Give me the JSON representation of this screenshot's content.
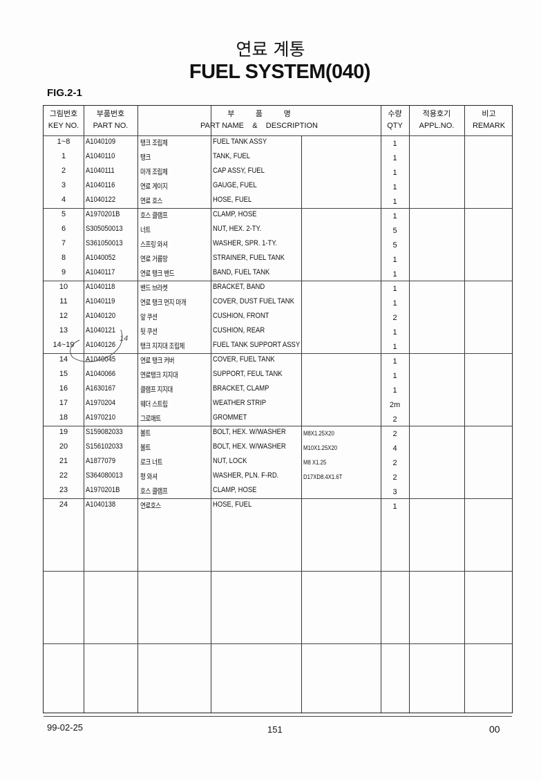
{
  "title_ko": "연료 계통",
  "title_en": "FUEL SYSTEM(040)",
  "figure": "FIG.2-1",
  "headers": {
    "key_ko": "그림번호",
    "key_en": "KEY NO.",
    "part_ko": "부품번호",
    "part_en": "PART NO.",
    "name_ko": "부          품          명",
    "name_en": "PART NAME    &    DESCRIPTION",
    "qty_ko": "수량",
    "qty_en": "QTY",
    "appl_ko": "적용호기",
    "appl_en": "APPL.NO.",
    "remark_ko": "비고",
    "remark_en": "REMARK"
  },
  "rows": [
    {
      "key": "1~8",
      "part": "A1040109",
      "name_ko": "탱크 조립체",
      "name_en": "FUEL TANK ASSY",
      "spec": "",
      "qty": "1"
    },
    {
      "key": "1",
      "part": "A1040110",
      "name_ko": "탱크",
      "name_en": "TANK, FUEL",
      "spec": "",
      "qty": "1"
    },
    {
      "key": "2",
      "part": "A1040111",
      "name_ko": "마개 조립체",
      "name_en": "CAP ASSY, FUEL",
      "spec": "",
      "qty": "1"
    },
    {
      "key": "3",
      "part": "A1040116",
      "name_ko": "연료 게이지",
      "name_en": "GAUGE, FUEL",
      "spec": "",
      "qty": "1"
    },
    {
      "key": "4",
      "part": "A1040122",
      "name_ko": "연료 호스",
      "name_en": "HOSE, FUEL",
      "spec": "",
      "qty": "1"
    },
    {
      "key": "5",
      "part": "A1970201B",
      "name_ko": "호스 클램프",
      "name_en": "CLAMP, HOSE",
      "spec": "",
      "qty": "1"
    },
    {
      "key": "6",
      "part": "S305050013",
      "name_ko": "너트",
      "name_en": "NUT, HEX. 2-TY.",
      "spec": "",
      "qty": "5"
    },
    {
      "key": "7",
      "part": "S361050013",
      "name_ko": "스프링 와셔",
      "name_en": "WASHER, SPR. 1-TY.",
      "spec": "",
      "qty": "5"
    },
    {
      "key": "8",
      "part": "A1040052",
      "name_ko": "연료 거름망",
      "name_en": "STRAINER, FUEL TANK",
      "spec": "",
      "qty": "1"
    },
    {
      "key": "9",
      "part": "A1040117",
      "name_ko": "연료 탱크 밴드",
      "name_en": "BAND, FUEL TANK",
      "spec": "",
      "qty": "1"
    },
    {
      "key": "10",
      "part": "A1040118",
      "name_ko": "밴드 브라켓",
      "name_en": "BRACKET, BAND",
      "spec": "",
      "qty": "1"
    },
    {
      "key": "11",
      "part": "A1040119",
      "name_ko": "연료 탱크 먼지 마개",
      "name_en": "COVER, DUST FUEL TANK",
      "spec": "",
      "qty": "1"
    },
    {
      "key": "12",
      "part": "A1040120",
      "name_ko": "앞 쿠션",
      "name_en": "CUSHION, FRONT",
      "spec": "",
      "qty": "2"
    },
    {
      "key": "13",
      "part": "A1040121",
      "name_ko": "뒷 쿠션",
      "name_en": "CUSHION, REAR",
      "spec": "",
      "qty": "1"
    },
    {
      "key": "14~19",
      "part": "A1040126",
      "name_ko": "탱크 지지대 조립체",
      "name_en": "FUEL TANK SUPPORT ASSY",
      "spec": "",
      "qty": "1"
    },
    {
      "key": "14",
      "part": "A1040045",
      "name_ko": "연료 탱크 커버",
      "name_en": "COVER, FUEL TANK",
      "spec": "",
      "qty": "1"
    },
    {
      "key": "15",
      "part": "A1040066",
      "name_ko": "연료탱크 지지대",
      "name_en": "SUPPORT, FEUL TANK",
      "spec": "",
      "qty": "1"
    },
    {
      "key": "16",
      "part": "A1630167",
      "name_ko": "클램프 지지대",
      "name_en": "BRACKET, CLAMP",
      "spec": "",
      "qty": "1"
    },
    {
      "key": "17",
      "part": "A1970204",
      "name_ko": "웨더 스트립",
      "name_en": "WEATHER STRIP",
      "spec": "",
      "qty": "2m"
    },
    {
      "key": "18",
      "part": "A1970210",
      "name_ko": "그로매트",
      "name_en": "GROMMET",
      "spec": "",
      "qty": "2"
    },
    {
      "key": "19",
      "part": "S159082033",
      "name_ko": "볼트",
      "name_en": "BOLT, HEX. W/WASHER",
      "spec": "M8X1.25X20",
      "qty": "2"
    },
    {
      "key": "20",
      "part": "S156102033",
      "name_ko": "볼트",
      "name_en": "BOLT, HEX. W/WASHER",
      "spec": "M10X1.25X20",
      "qty": "4"
    },
    {
      "key": "21",
      "part": "A1877079",
      "name_ko": "로크 너트",
      "name_en": "NUT, LOCK",
      "spec": "M8 X1.25",
      "qty": "2"
    },
    {
      "key": "22",
      "part": "S364080013",
      "name_ko": "평 와셔",
      "name_en": "WASHER, PLN. F-RD.",
      "spec": "D17XD8.4X1.6T",
      "qty": "2"
    },
    {
      "key": "23",
      "part": "A1970201B",
      "name_ko": "호스 클램프",
      "name_en": "CLAMP, HOSE",
      "spec": "",
      "qty": "3"
    },
    {
      "key": "24",
      "part": "A1040138",
      "name_ko": "연료호스",
      "name_en": "HOSE, FUEL",
      "spec": "",
      "qty": "1"
    }
  ],
  "handwritten_note": "14",
  "footer": {
    "date": "99-02-25",
    "page": "151",
    "code": "00"
  }
}
